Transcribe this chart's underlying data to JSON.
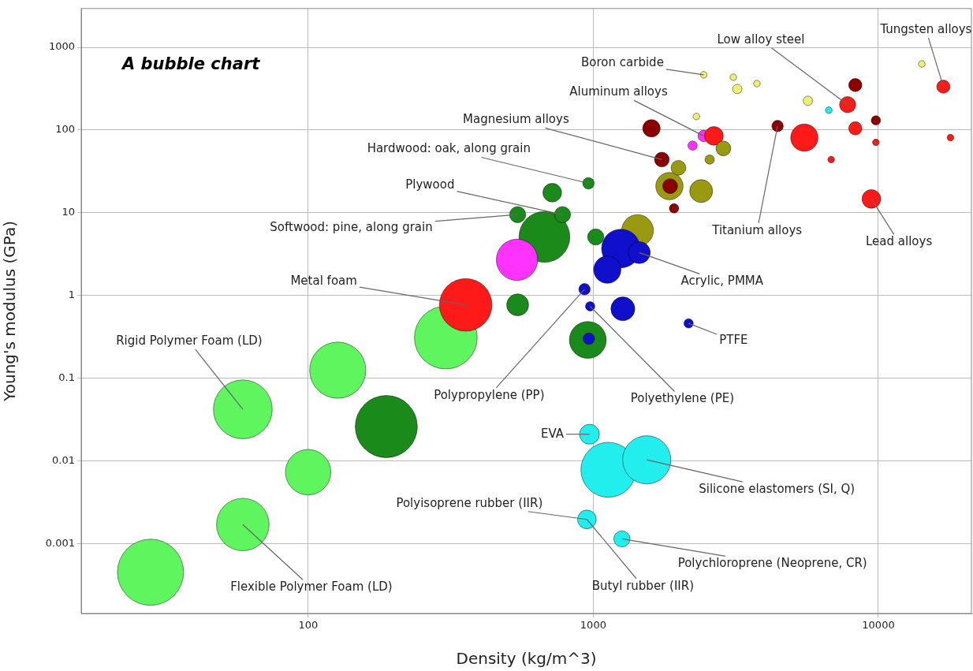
{
  "chart_data": {
    "type": "bubble",
    "title": "A bubble chart",
    "xlabel": "Density (kg/m^3)",
    "ylabel": "Young's modulus (GPa)",
    "log": "xy",
    "grid": true,
    "legend": false,
    "xlim": [
      16,
      21200
    ],
    "ylim": [
      0.000143,
      2950
    ],
    "xticks": [
      100,
      1000,
      10000
    ],
    "yticks": [
      0.001,
      0.01,
      0.1,
      1,
      10,
      100,
      1000
    ],
    "series": [
      {
        "color": "#5ef55e",
        "x": [
          28,
          59,
          100,
          59,
          127,
          304
        ],
        "values": [
          0.00045,
          0.0017,
          0.0073,
          0.042,
          0.125,
          0.31
        ],
        "sizes": [
          1.0,
          0.63,
          0.47,
          0.79,
          0.72,
          0.9
        ]
      },
      {
        "color": "#1a8a1a",
        "x": [
          188,
          674,
          780,
          543,
          957,
          718,
          543,
          962,
          1020
        ],
        "values": [
          0.026,
          5.1,
          9.5,
          0.77,
          0.29,
          17.5,
          9.5,
          22.7,
          5.1
        ],
        "sizes": [
          0.88,
          0.59,
          0.06,
          0.11,
          0.31,
          0.08,
          0.06,
          0.03,
          0.06
        ]
      },
      {
        "color": "#ff33ff",
        "x": [
          540,
          2230,
          2440
        ],
        "values": [
          2.7,
          65,
          85
        ],
        "sizes": [
          0.39,
          0.02,
          0.03
        ]
      },
      {
        "color": "#ff1a1a",
        "x": [
          357,
          5500,
          9450,
          7800,
          8300,
          16900,
          17900,
          9800,
          6830,
          2650
        ],
        "values": [
          0.77,
          81,
          14.7,
          203,
          105,
          335,
          81,
          71,
          44,
          85
        ],
        "sizes": [
          0.63,
          0.17,
          0.08,
          0.06,
          0.04,
          0.04,
          0.01,
          0.01,
          0.01,
          0.08
        ]
      },
      {
        "color": "#9a9a10",
        "x": [
          1430,
          1850,
          2390,
          1990,
          2860,
          2560
        ],
        "values": [
          6.1,
          21,
          18.3,
          35,
          60,
          44
        ],
        "sizes": [
          0.23,
          0.17,
          0.12,
          0.05,
          0.05,
          0.02
        ]
      },
      {
        "color": "#8b0000",
        "x": [
          1600,
          1740,
          1860,
          1920,
          8300,
          9800,
          4430
        ],
        "values": [
          105,
          44,
          21,
          11.3,
          350,
          131,
          112
        ],
        "sizes": [
          0.07,
          0.05,
          0.05,
          0.02,
          0.04,
          0.02,
          0.03
        ]
      },
      {
        "color": "#f0f070",
        "x": [
          2440,
          2300,
          3200,
          3750,
          5660,
          14200,
          3100
        ],
        "values": [
          466,
          146,
          314,
          365,
          226,
          631,
          435
        ],
        "sizes": [
          0.01,
          0.01,
          0.02,
          0.01,
          0.02,
          0.01,
          0.01
        ]
      },
      {
        "color": "#1010cc",
        "x": [
          1250,
          1120,
          1450,
          1270,
          932,
          975,
          965,
          2160
        ],
        "values": [
          3.7,
          2.05,
          3.3,
          0.69,
          1.19,
          0.74,
          0.3,
          0.46
        ],
        "sizes": [
          0.34,
          0.17,
          0.11,
          0.13,
          0.03,
          0.02,
          0.03,
          0.02
        ]
      },
      {
        "color": "#22eeee",
        "x": [
          1130,
          1540,
          970,
          950,
          1260,
          6700
        ],
        "values": [
          0.0078,
          0.0103,
          0.021,
          0.00196,
          0.00114,
          174
        ],
        "sizes": [
          0.69,
          0.53,
          0.09,
          0.08,
          0.06,
          0.01
        ]
      }
    ],
    "annotations": [
      {
        "text": "Tungsten alloys",
        "x": 16900,
        "y": 335
      },
      {
        "text": "Low alloy steel",
        "x": 7800,
        "y": 203
      },
      {
        "text": "Boron carbide",
        "x": 2440,
        "y": 466
      },
      {
        "text": "Aluminum alloys",
        "x": 2440,
        "y": 85
      },
      {
        "text": "Magnesium alloys",
        "x": 1740,
        "y": 44
      },
      {
        "text": "Hardwood: oak, along grain",
        "x": 962,
        "y": 22.7
      },
      {
        "text": "Plywood",
        "x": 780,
        "y": 9.5
      },
      {
        "text": "Softwood: pine, along grain",
        "x": 543,
        "y": 9.5
      },
      {
        "text": "Titanium alloys",
        "x": 4430,
        "y": 112
      },
      {
        "text": "Lead alloys",
        "x": 9450,
        "y": 14.7
      },
      {
        "text": "Acrylic, PMMA",
        "x": 1450,
        "y": 3.3
      },
      {
        "text": "Metal foam",
        "x": 357,
        "y": 0.77
      },
      {
        "text": "PTFE",
        "x": 2160,
        "y": 0.46
      },
      {
        "text": "Rigid Polymer Foam (LD)",
        "x": 59,
        "y": 0.042
      },
      {
        "text": "Polypropylene (PP)",
        "x": 932,
        "y": 1.19
      },
      {
        "text": "Polyethylene (PE)",
        "x": 975,
        "y": 0.74
      },
      {
        "text": "EVA",
        "x": 970,
        "y": 0.021
      },
      {
        "text": "Silicone elastomers (SI, Q)",
        "x": 1540,
        "y": 0.0103
      },
      {
        "text": "Polyisoprene rubber (IIR)",
        "x": 950,
        "y": 0.00196
      },
      {
        "text": "Polychloroprene (Neoprene, CR)",
        "x": 1260,
        "y": 0.00114
      },
      {
        "text": "Butyl rubber (IIR)",
        "x": 950,
        "y": 0.00196
      },
      {
        "text": "Flexible Polymer Foam (LD)",
        "x": 59,
        "y": 0.0017
      }
    ]
  }
}
